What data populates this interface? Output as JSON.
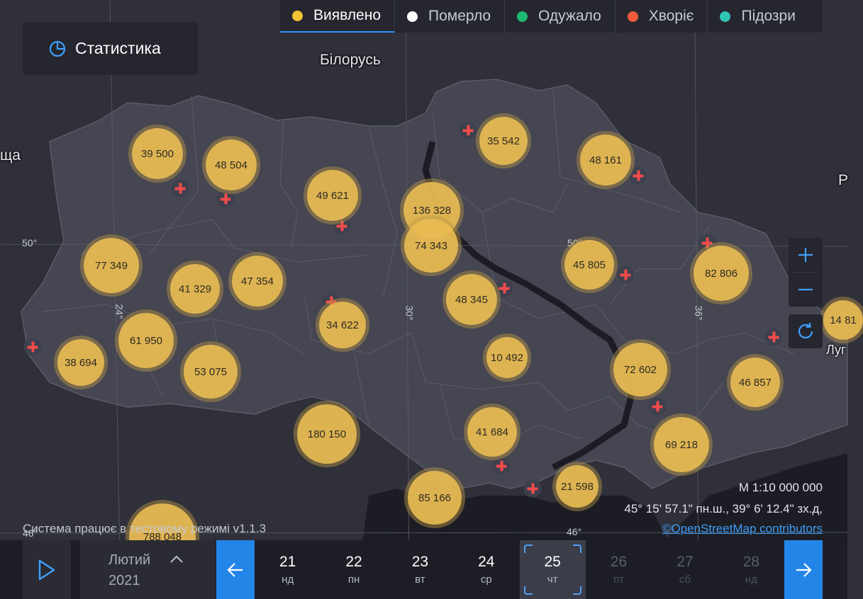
{
  "layers": [
    {
      "label": "Виявлено",
      "color": "#f2c234",
      "active": true
    },
    {
      "label": "Померло",
      "color": "#ffffff",
      "active": false
    },
    {
      "label": "Одужало",
      "color": "#1fba72",
      "active": false
    },
    {
      "label": "Хворіє",
      "color": "#f05a3b",
      "active": false
    },
    {
      "label": "Підозри",
      "color": "#2ec4b3",
      "active": false
    }
  ],
  "stats_button": {
    "label": "Статистика",
    "icon": "pie-chart-icon"
  },
  "map_labels": [
    {
      "text": "Білорусь"
    },
    {
      "text": "ща"
    },
    {
      "text": "Р"
    },
    {
      "text": "Луг"
    }
  ],
  "grid_labels": [
    "50°",
    "50°",
    "24°",
    "30°",
    "36°",
    "46°",
    "46°"
  ],
  "clusters": [
    {
      "value": "39 500"
    },
    {
      "value": "48 504"
    },
    {
      "value": "49 621"
    },
    {
      "value": "136 328"
    },
    {
      "value": "74 343"
    },
    {
      "value": "35 542"
    },
    {
      "value": "48 161"
    },
    {
      "value": "77 349"
    },
    {
      "value": "41 329"
    },
    {
      "value": "47 354"
    },
    {
      "value": "48 345"
    },
    {
      "value": "45 805"
    },
    {
      "value": "82 806"
    },
    {
      "value": "61 950"
    },
    {
      "value": "34 622"
    },
    {
      "value": "38 694"
    },
    {
      "value": "53 075"
    },
    {
      "value": "10 492"
    },
    {
      "value": "72 602"
    },
    {
      "value": "46 857"
    },
    {
      "value": "180 150"
    },
    {
      "value": "41 684"
    },
    {
      "value": "69 218"
    },
    {
      "value": "85 166"
    },
    {
      "value": "21 598"
    },
    {
      "value": "788 048"
    },
    {
      "value": "14 81"
    }
  ],
  "zoom": {
    "zoom_in_icon": "plus-icon",
    "zoom_out_icon": "minus-icon",
    "reset_icon": "refresh-icon"
  },
  "map_info": {
    "scale": "М 1:10 000 000",
    "coords": "45° 15' 57.1\" пн.ш., 39° 6' 12.4\" зх.д,",
    "attribution": "©OpenStreetMap contributors"
  },
  "test_mode_text": "Система працює в тестовому режимі v1.1.3",
  "timeline": {
    "month": "Лютий",
    "year": "2021",
    "days": [
      {
        "num": "21",
        "dow": "нд",
        "state": "normal"
      },
      {
        "num": "22",
        "dow": "пн",
        "state": "normal"
      },
      {
        "num": "23",
        "dow": "вт",
        "state": "normal"
      },
      {
        "num": "24",
        "dow": "ср",
        "state": "normal"
      },
      {
        "num": "25",
        "dow": "чт",
        "state": "selected"
      },
      {
        "num": "26",
        "dow": "пт",
        "state": "disabled"
      },
      {
        "num": "27",
        "dow": "сб",
        "state": "disabled"
      },
      {
        "num": "28",
        "dow": "нд",
        "state": "disabled"
      }
    ]
  }
}
